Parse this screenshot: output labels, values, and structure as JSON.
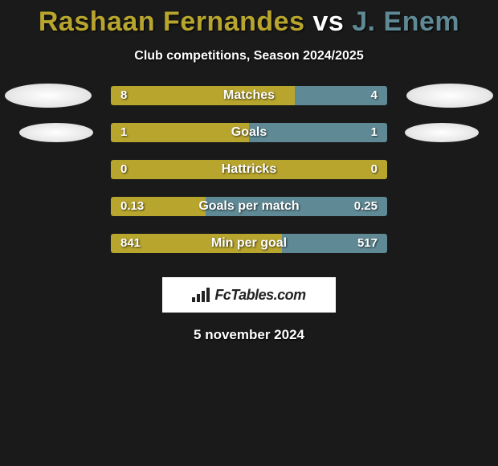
{
  "colors": {
    "background": "#1a1a1a",
    "player1": "#b8a52e",
    "player2": "#5f8a95",
    "text": "#ffffff"
  },
  "title": {
    "player1_name": "Rashaan Fernandes",
    "vs": " vs ",
    "player2_name": "J. Enem",
    "player1_color": "#b8a52e",
    "player2_color": "#5f8a95"
  },
  "subtitle": "Club competitions, Season 2024/2025",
  "stats": [
    {
      "label": "Matches",
      "left_val": "8",
      "right_val": "4",
      "left_pct": 66.7,
      "right_pct": 33.3,
      "show_ellipse": "big"
    },
    {
      "label": "Goals",
      "left_val": "1",
      "right_val": "1",
      "left_pct": 50.0,
      "right_pct": 50.0,
      "show_ellipse": "small"
    },
    {
      "label": "Hattricks",
      "left_val": "0",
      "right_val": "0",
      "left_pct": 100.0,
      "right_pct": 0.0,
      "show_ellipse": "none"
    },
    {
      "label": "Goals per match",
      "left_val": "0.13",
      "right_val": "0.25",
      "left_pct": 34.2,
      "right_pct": 65.8,
      "show_ellipse": "none"
    },
    {
      "label": "Min per goal",
      "left_val": "841",
      "right_val": "517",
      "left_pct": 61.9,
      "right_pct": 38.1,
      "show_ellipse": "none"
    }
  ],
  "branding_text": "FcTables.com",
  "date_text": "5 november 2024"
}
